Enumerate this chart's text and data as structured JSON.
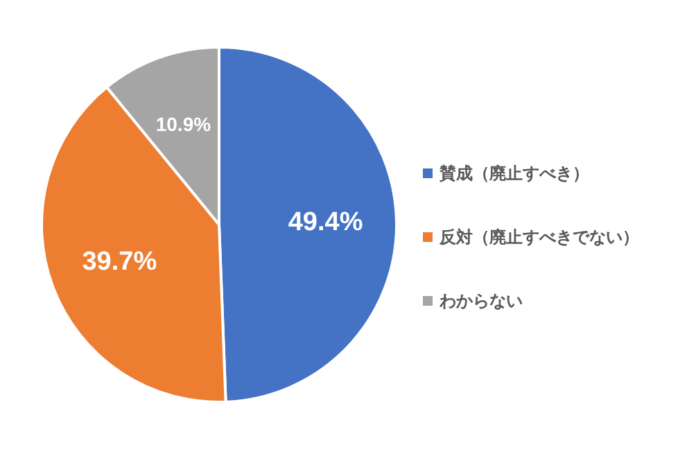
{
  "chart_data": {
    "type": "pie",
    "categories": [
      "賛成（廃止すべき）",
      "反対（廃止すべきでない）",
      "わからない"
    ],
    "values": [
      49.4,
      39.7,
      10.9
    ],
    "colors": [
      "#4472c4",
      "#ed7d31",
      "#a5a5a5"
    ],
    "value_labels": [
      "49.4%",
      "39.7%",
      "10.9%"
    ],
    "legend": "right"
  }
}
